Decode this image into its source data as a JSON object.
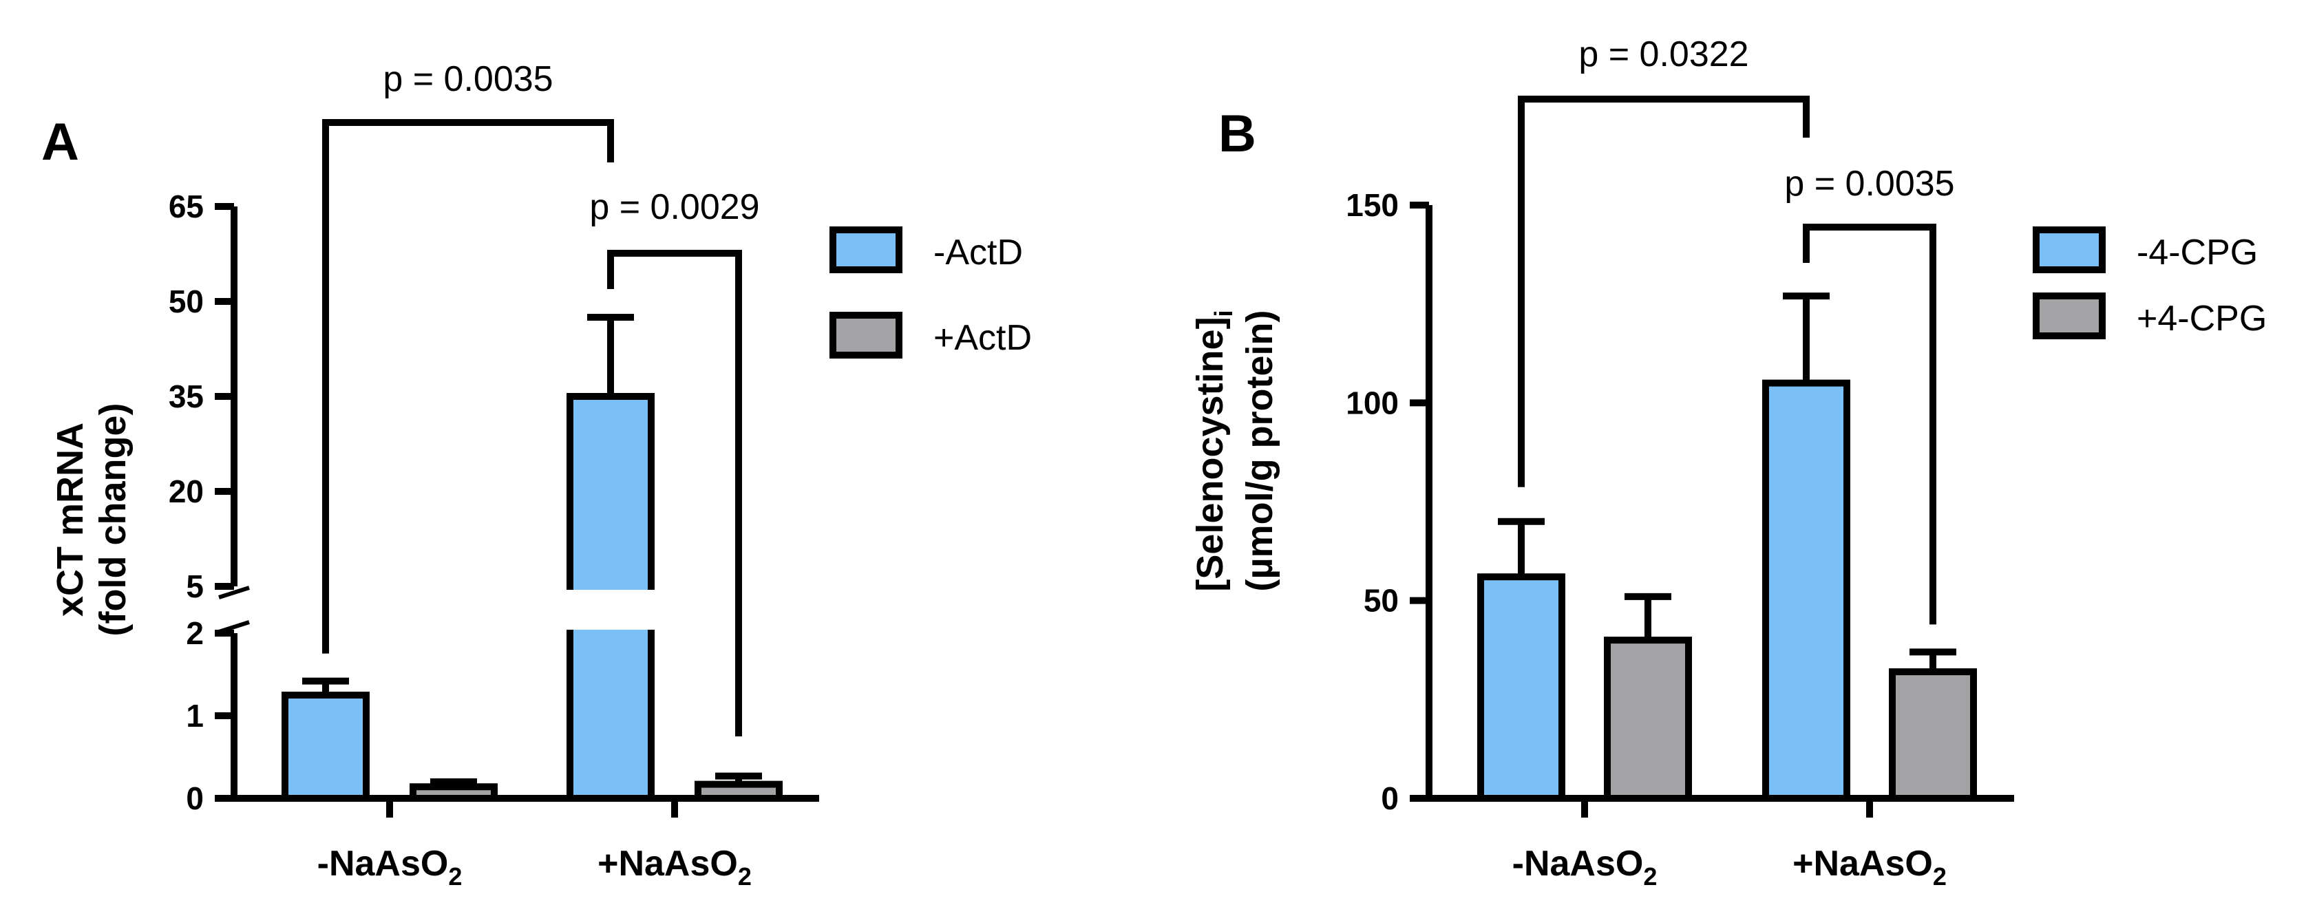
{
  "panels": [
    {
      "letter": "A",
      "chart_data": {
        "type": "bar",
        "categories": [
          "-NaAsO",
          "+NaAsO"
        ],
        "category_subscripts": [
          "2",
          "2"
        ],
        "series": [
          {
            "name": "-ActD",
            "values": [
              1.25,
              35
            ],
            "errors": [
              0.17,
              12.5
            ]
          },
          {
            "name": "+ActD",
            "values": [
              0.14,
              0.17
            ],
            "errors": [
              0.06,
              0.1
            ]
          }
        ],
        "xlabel": "",
        "ylabel": [
          "xCT mRNA",
          "(fold change)"
        ],
        "y_axis": {
          "broken": true,
          "lower_segment": [
            0,
            2
          ],
          "upper_segment": [
            5,
            65
          ],
          "lower_ticks": [
            "0",
            "1",
            "2"
          ],
          "upper_ticks": [
            "5",
            "20",
            "35",
            "50",
            "65"
          ]
        },
        "legend_position": "right",
        "annotations": [
          {
            "text": "p = 0.0035",
            "between": [
              "-NaAsO2 / -ActD",
              "+NaAsO2 / -ActD"
            ]
          },
          {
            "text": "p = 0.0029",
            "between": [
              "+NaAsO2 / -ActD",
              "+NaAsO2 / +ActD"
            ]
          }
        ]
      }
    },
    {
      "letter": "B",
      "chart_data": {
        "type": "bar",
        "categories": [
          "-NaAsO",
          "+NaAsO"
        ],
        "category_subscripts": [
          "2",
          "2"
        ],
        "series": [
          {
            "name": "-4-CPG",
            "values": [
              56,
              105
            ],
            "errors": [
              14,
              22
            ]
          },
          {
            "name": "+4-CPG",
            "values": [
              40,
              32
            ],
            "errors": [
              11,
              5
            ]
          }
        ],
        "xlabel": "",
        "ylabel": [
          "[Selenocystine]",
          "(µmol/g protein)"
        ],
        "ylabel_subscript": "i",
        "ylim": [
          0,
          150
        ],
        "y_ticks": [
          "0",
          "50",
          "100",
          "150"
        ],
        "legend_position": "right",
        "annotations": [
          {
            "text": "p = 0.0322",
            "between": [
              "-NaAsO2 / -4-CPG",
              "+NaAsO2 / -4-CPG"
            ]
          },
          {
            "text": "p = 0.0035",
            "between": [
              "+NaAsO2 / -4-CPG",
              "+NaAsO2 / +4-CPG"
            ]
          }
        ]
      }
    }
  ],
  "colors": {
    "series1": "#7bbff7",
    "series2": "#a3a3a6",
    "stroke": "#000000",
    "background": "#ffffff"
  }
}
